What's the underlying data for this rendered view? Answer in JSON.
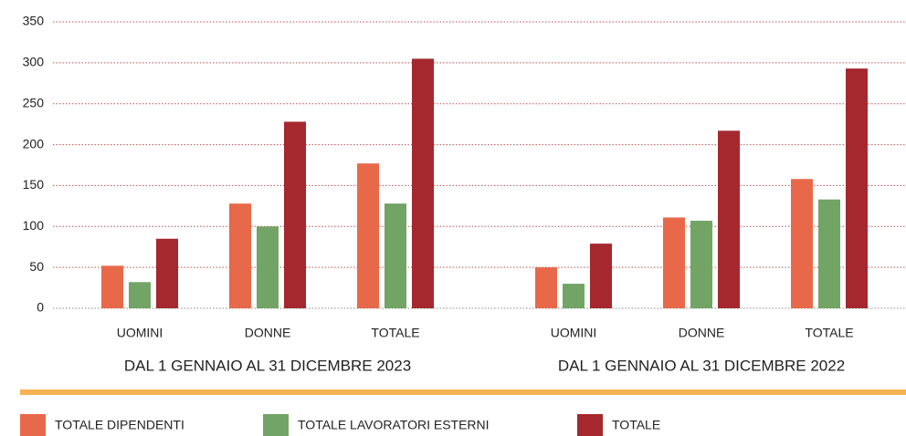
{
  "chart_data": {
    "type": "bar",
    "categories": [
      "UOMINI",
      "DONNE",
      "TOTALE",
      "UOMINI",
      "DONNE",
      "TOTALE"
    ],
    "group_labels": [
      "DAL 1 GENNAIO AL 31 DICEMBRE 2023",
      "DAL 1 GENNAIO AL 31 DICEMBRE 2022"
    ],
    "series": [
      {
        "name": "TOTALE DIPENDENTI",
        "color": "#e8694a",
        "values": [
          52,
          128,
          177,
          50,
          111,
          158
        ]
      },
      {
        "name": "TOTALE LAVORATORI ESTERNI",
        "color": "#72a466",
        "values": [
          32,
          100,
          128,
          30,
          107,
          133
        ]
      },
      {
        "name": "TOTALE",
        "color": "#a5282f",
        "values": [
          85,
          228,
          305,
          79,
          217,
          293
        ]
      }
    ],
    "ylim": [
      0,
      350
    ],
    "yticks": [
      0,
      50,
      100,
      150,
      200,
      250,
      300,
      350
    ],
    "grid": true,
    "legend": "bottom"
  }
}
